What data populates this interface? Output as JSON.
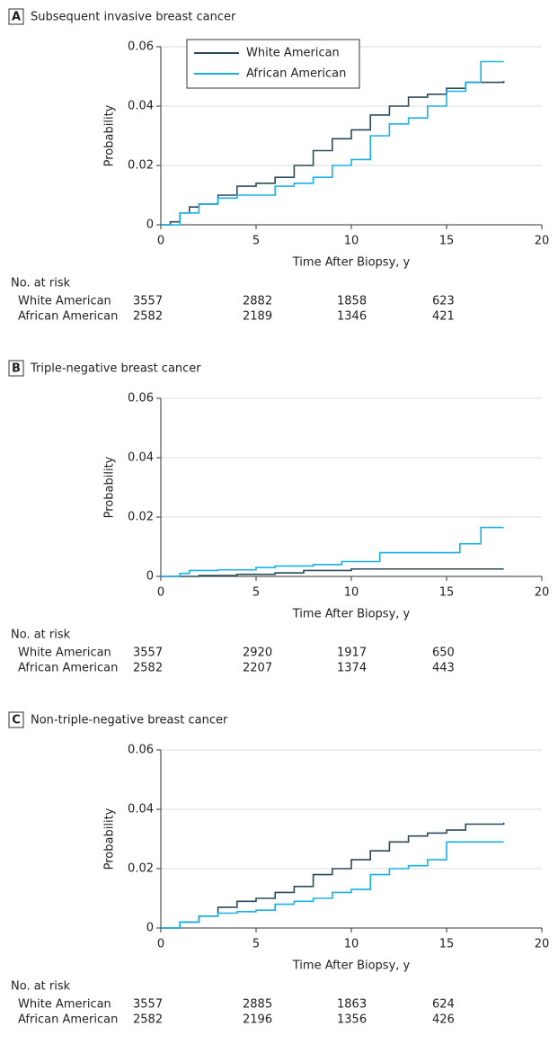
{
  "chart_data": [
    {
      "type": "line",
      "step": true,
      "panel": "A",
      "title": "Subsequent invasive breast cancer",
      "x_label": "Time After Biopsy, y",
      "y_label": "Probability",
      "xlim": [
        0,
        20
      ],
      "xticks": [
        0,
        5,
        10,
        15,
        20
      ],
      "ylim": [
        0,
        0.06
      ],
      "yticks": [
        0,
        0.02,
        0.04,
        0.06
      ],
      "grid": true,
      "legend": "upper-left",
      "risk_label": "No. at risk",
      "series": [
        {
          "name": "White American",
          "color": "#2d4a5a",
          "x": [
            0,
            0.5,
            1,
            1.5,
            2,
            3,
            4,
            5,
            6,
            7,
            8,
            9,
            10,
            11,
            12,
            13,
            14,
            15,
            16,
            18
          ],
          "values": [
            0,
            0.001,
            0.004,
            0.006,
            0.007,
            0.01,
            0.013,
            0.014,
            0.016,
            0.02,
            0.025,
            0.029,
            0.032,
            0.037,
            0.04,
            0.043,
            0.044,
            0.046,
            0.048,
            0.0485
          ],
          "at_risk": [
            3557,
            2882,
            1858,
            623
          ]
        },
        {
          "name": "African American",
          "color": "#1ab0e8",
          "x": [
            0,
            1,
            2,
            3,
            4,
            6,
            7,
            8,
            9,
            10,
            11,
            12,
            13,
            14,
            15,
            16,
            16.8,
            18
          ],
          "values": [
            0,
            0.004,
            0.007,
            0.009,
            0.01,
            0.013,
            0.014,
            0.016,
            0.02,
            0.022,
            0.03,
            0.034,
            0.036,
            0.04,
            0.045,
            0.048,
            0.055,
            0.055
          ],
          "at_risk": [
            2582,
            2189,
            1346,
            421
          ]
        }
      ]
    },
    {
      "type": "line",
      "step": true,
      "panel": "B",
      "title": "Triple-negative breast cancer",
      "x_label": "Time After Biopsy, y",
      "y_label": "Probability",
      "xlim": [
        0,
        20
      ],
      "xticks": [
        0,
        5,
        10,
        15,
        20
      ],
      "ylim": [
        0,
        0.06
      ],
      "yticks": [
        0,
        0.02,
        0.04,
        0.06
      ],
      "grid": true,
      "risk_label": "No. at risk",
      "series": [
        {
          "name": "White American",
          "color": "#2d4a5a",
          "x": [
            0,
            2,
            4,
            6,
            7.5,
            10,
            18
          ],
          "values": [
            0,
            0.0003,
            0.0007,
            0.0012,
            0.002,
            0.0025,
            0.0025
          ],
          "at_risk": [
            3557,
            2920,
            1917,
            650
          ]
        },
        {
          "name": "African American",
          "color": "#1ab0e8",
          "x": [
            0,
            1,
            1.5,
            3,
            5,
            6,
            8,
            9.5,
            11.5,
            15.7,
            16.8,
            18
          ],
          "values": [
            0,
            0.001,
            0.002,
            0.0022,
            0.003,
            0.0035,
            0.004,
            0.005,
            0.008,
            0.011,
            0.0165,
            0.0165
          ],
          "at_risk": [
            2582,
            2207,
            1374,
            443
          ]
        }
      ]
    },
    {
      "type": "line",
      "step": true,
      "panel": "C",
      "title": "Non-triple-negative breast cancer",
      "x_label": "Time After Biopsy, y",
      "y_label": "Probability",
      "xlim": [
        0,
        20
      ],
      "xticks": [
        0,
        5,
        10,
        15,
        20
      ],
      "ylim": [
        0,
        0.06
      ],
      "yticks": [
        0,
        0.02,
        0.04,
        0.06
      ],
      "grid": true,
      "risk_label": "No. at risk",
      "series": [
        {
          "name": "White American",
          "color": "#2d4a5a",
          "x": [
            0,
            1,
            2,
            3,
            4,
            5,
            6,
            7,
            8,
            9,
            10,
            11,
            12,
            13,
            14,
            15,
            16,
            18
          ],
          "values": [
            0,
            0.002,
            0.004,
            0.007,
            0.009,
            0.01,
            0.012,
            0.014,
            0.018,
            0.02,
            0.023,
            0.026,
            0.029,
            0.031,
            0.032,
            0.033,
            0.035,
            0.0355
          ],
          "at_risk": [
            3557,
            2885,
            1863,
            624
          ]
        },
        {
          "name": "African American",
          "color": "#1ab0e8",
          "x": [
            0,
            1,
            2,
            3,
            4,
            5,
            6,
            7,
            8,
            9,
            10,
            11,
            12,
            13,
            14,
            15,
            18
          ],
          "values": [
            0,
            0.002,
            0.004,
            0.005,
            0.0055,
            0.006,
            0.008,
            0.009,
            0.01,
            0.012,
            0.013,
            0.018,
            0.02,
            0.021,
            0.023,
            0.029,
            0.029
          ],
          "at_risk": [
            2582,
            2196,
            1356,
            426
          ]
        }
      ]
    }
  ]
}
